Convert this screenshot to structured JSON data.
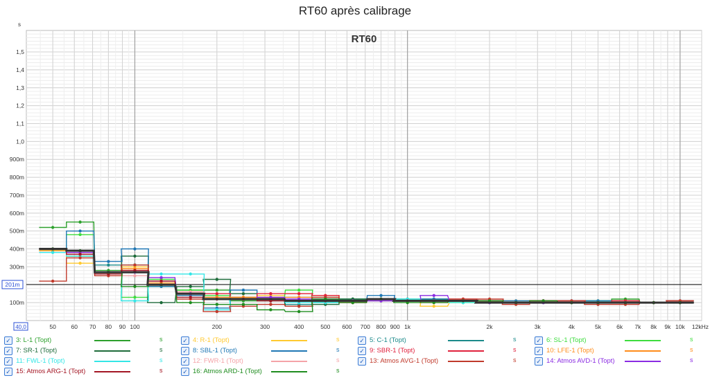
{
  "chart_data": {
    "type": "line",
    "title": "RT60 après calibrage",
    "inner_label": "RT60",
    "ylabel": "s",
    "ylim": [
      0,
      1.62
    ],
    "y_ticks": [
      {
        "v": 0.1,
        "label": "100m"
      },
      {
        "v": 0.3,
        "label": "300m"
      },
      {
        "v": 0.4,
        "label": "400m"
      },
      {
        "v": 0.5,
        "label": "500m"
      },
      {
        "v": 0.6,
        "label": "600m"
      },
      {
        "v": 0.7,
        "label": "700m"
      },
      {
        "v": 0.8,
        "label": "800m"
      },
      {
        "v": 0.9,
        "label": "900m"
      },
      {
        "v": 1.0,
        "label": "1,0"
      },
      {
        "v": 1.1,
        "label": "1,1"
      },
      {
        "v": 1.2,
        "label": "1,2"
      },
      {
        "v": 1.3,
        "label": "1,3"
      },
      {
        "v": 1.4,
        "label": "1,4"
      },
      {
        "v": 1.5,
        "label": "1,5"
      }
    ],
    "cursor": {
      "value": 0.201,
      "label": "201m"
    },
    "x_start": {
      "value": 40,
      "label": "40,0"
    },
    "xlim": [
      40,
      12000
    ],
    "x_scale": "log",
    "x_ticks": [
      {
        "v": 50,
        "label": "50"
      },
      {
        "v": 60,
        "label": "60"
      },
      {
        "v": 70,
        "label": "70"
      },
      {
        "v": 80,
        "label": "80"
      },
      {
        "v": 90,
        "label": "90"
      },
      {
        "v": 100,
        "label": "100"
      },
      {
        "v": 200,
        "label": "200"
      },
      {
        "v": 300,
        "label": "300"
      },
      {
        "v": 400,
        "label": "400"
      },
      {
        "v": 500,
        "label": "500"
      },
      {
        "v": 600,
        "label": "600"
      },
      {
        "v": 700,
        "label": "700"
      },
      {
        "v": 800,
        "label": "800"
      },
      {
        "v": 900,
        "label": "900"
      },
      {
        "v": 1000,
        "label": "1k"
      },
      {
        "v": 2000,
        "label": "2k"
      },
      {
        "v": 3000,
        "label": "3k"
      },
      {
        "v": 4000,
        "label": "4k"
      },
      {
        "v": 5000,
        "label": "5k"
      },
      {
        "v": 6000,
        "label": "6k"
      },
      {
        "v": 7000,
        "label": "7k"
      },
      {
        "v": 8000,
        "label": "8k"
      },
      {
        "v": 9000,
        "label": "9k"
      },
      {
        "v": 10000,
        "label": "10k"
      },
      {
        "v": 12000,
        "label": "12kHz"
      }
    ],
    "bands": [
      50,
      63,
      80,
      100,
      125,
      160,
      200,
      250,
      315,
      400,
      500,
      630,
      800,
      1000,
      1250,
      1600,
      2000,
      2500,
      3150,
      4000,
      5000,
      6300,
      8000,
      10000
    ],
    "grid": true,
    "legend_position": "bottom",
    "series": [
      {
        "name": "3: L-1 (Topt)",
        "color": "#2ca02c",
        "values": [
          0.52,
          0.55,
          0.28,
          0.31,
          0.19,
          0.17,
          0.17,
          0.11,
          0.13,
          0.08,
          0.1,
          0.12,
          0.12,
          0.11,
          0.12,
          0.11,
          0.1,
          0.1,
          0.1,
          0.1,
          0.1,
          0.12,
          0.1,
          0.1
        ]
      },
      {
        "name": "4: R-1 (Topt)",
        "color": "#ffc930",
        "values": [
          0.39,
          0.32,
          0.27,
          0.3,
          0.2,
          0.14,
          0.12,
          0.13,
          0.14,
          0.15,
          0.14,
          0.11,
          0.12,
          0.12,
          0.08,
          0.1,
          0.1,
          0.11,
          0.1,
          0.1,
          0.1,
          0.11,
          0.1,
          0.11
        ]
      },
      {
        "name": "5: C-1 (Topt)",
        "color": "#1b8a8a",
        "values": [
          0.4,
          0.36,
          0.31,
          0.31,
          0.22,
          0.15,
          0.13,
          0.12,
          0.13,
          0.09,
          0.1,
          0.12,
          0.12,
          0.12,
          0.12,
          0.11,
          0.11,
          0.1,
          0.1,
          0.1,
          0.11,
          0.1,
          0.1,
          0.1
        ]
      },
      {
        "name": "6: SL-1 (Topt)",
        "color": "#3ddc3d",
        "values": [
          0.39,
          0.48,
          0.27,
          0.13,
          0.23,
          0.17,
          0.14,
          0.13,
          0.12,
          0.17,
          0.13,
          0.11,
          0.11,
          0.11,
          0.12,
          0.1,
          0.11,
          0.1,
          0.1,
          0.1,
          0.11,
          0.1,
          0.1,
          0.1
        ]
      },
      {
        "name": "7: SR-1 (Topt)",
        "color": "#1d6b3a",
        "values": [
          0.4,
          0.37,
          0.26,
          0.36,
          0.1,
          0.19,
          0.23,
          0.15,
          0.11,
          0.08,
          0.09,
          0.12,
          0.12,
          0.11,
          0.11,
          0.11,
          0.11,
          0.1,
          0.11,
          0.11,
          0.1,
          0.11,
          0.1,
          0.1
        ]
      },
      {
        "name": "8: SBL-1 (Topt)",
        "color": "#1f77b4",
        "values": [
          0.4,
          0.5,
          0.33,
          0.4,
          0.19,
          0.14,
          0.07,
          0.17,
          0.12,
          0.13,
          0.12,
          0.11,
          0.14,
          0.11,
          0.12,
          0.11,
          0.1,
          0.11,
          0.1,
          0.11,
          0.11,
          0.1,
          0.1,
          0.11
        ]
      },
      {
        "name": "9: SBR-1 (Topt)",
        "color": "#e0203c",
        "values": [
          0.4,
          0.38,
          0.27,
          0.28,
          0.22,
          0.16,
          0.15,
          0.13,
          0.15,
          0.15,
          0.14,
          0.11,
          0.11,
          0.11,
          0.11,
          0.12,
          0.11,
          0.1,
          0.11,
          0.11,
          0.1,
          0.11,
          0.1,
          0.11
        ]
      },
      {
        "name": "10: LFE-1 (Topt)",
        "color": "#ff8c1a",
        "values": [
          0.39,
          0.36,
          0.27,
          0.29,
          0.21,
          0.15,
          0.13,
          0.13,
          0.13,
          0.13,
          0.12,
          0.11,
          0.11,
          0.11,
          0.11,
          0.11,
          0.1,
          0.1,
          0.1,
          0.1,
          0.1,
          0.1,
          0.1,
          0.1
        ]
      },
      {
        "name": "11: FWL-1 (Topt)",
        "color": "#33e6e6",
        "values": [
          0.38,
          0.36,
          0.27,
          0.11,
          0.26,
          0.26,
          0.06,
          0.12,
          0.12,
          0.1,
          0.1,
          0.11,
          0.11,
          0.12,
          0.11,
          0.1,
          0.1,
          0.1,
          0.1,
          0.1,
          0.1,
          0.1,
          0.1,
          0.1
        ]
      },
      {
        "name": "12: FWR-1 (Topt)",
        "color": "#f4a3a8",
        "values": [
          0.4,
          0.37,
          0.27,
          0.25,
          0.22,
          0.16,
          0.12,
          0.12,
          0.13,
          0.12,
          0.11,
          0.11,
          0.11,
          0.11,
          0.11,
          0.11,
          0.1,
          0.1,
          0.1,
          0.1,
          0.1,
          0.1,
          0.1,
          0.1
        ]
      },
      {
        "name": "13: Atmos AVG-1 (Topt)",
        "color": "#c0392b",
        "values": [
          0.22,
          0.35,
          0.25,
          0.31,
          0.2,
          0.12,
          0.05,
          0.08,
          0.09,
          0.08,
          0.13,
          0.1,
          0.12,
          0.11,
          0.1,
          0.12,
          0.12,
          0.09,
          0.11,
          0.11,
          0.09,
          0.09,
          0.1,
          0.11
        ]
      },
      {
        "name": "14: Atmos AVD-1 (Topt)",
        "color": "#8a2be2",
        "values": [
          0.4,
          0.38,
          0.27,
          0.27,
          0.24,
          0.15,
          0.12,
          0.12,
          0.13,
          0.12,
          0.12,
          0.11,
          0.11,
          0.11,
          0.14,
          0.11,
          0.1,
          0.1,
          0.1,
          0.1,
          0.1,
          0.1,
          0.1,
          0.1
        ]
      },
      {
        "name": "15: Atmos ARG-1 (Topt)",
        "color": "#a31523",
        "values": [
          0.4,
          0.37,
          0.26,
          0.28,
          0.22,
          0.13,
          0.12,
          0.12,
          0.11,
          0.11,
          0.11,
          0.1,
          0.12,
          0.11,
          0.11,
          0.11,
          0.11,
          0.1,
          0.11,
          0.1,
          0.1,
          0.1,
          0.1,
          0.1
        ]
      },
      {
        "name": "16: Atmos ARD-1 (Topt)",
        "color": "#1e8c1e",
        "values": [
          0.4,
          0.39,
          0.27,
          0.19,
          0.2,
          0.1,
          0.09,
          0.09,
          0.06,
          0.05,
          0.12,
          0.1,
          0.12,
          0.1,
          0.1,
          0.11,
          0.11,
          0.1,
          0.11,
          0.1,
          0.1,
          0.1,
          0.1,
          0.1
        ]
      }
    ],
    "average": {
      "color": "#333333",
      "values": [
        0.4,
        0.39,
        0.27,
        0.27,
        0.2,
        0.15,
        0.12,
        0.12,
        0.12,
        0.11,
        0.11,
        0.11,
        0.12,
        0.11,
        0.11,
        0.11,
        0.1,
        0.1,
        0.1,
        0.1,
        0.1,
        0.1,
        0.1,
        0.1
      ]
    },
    "legend_unit": "s"
  }
}
